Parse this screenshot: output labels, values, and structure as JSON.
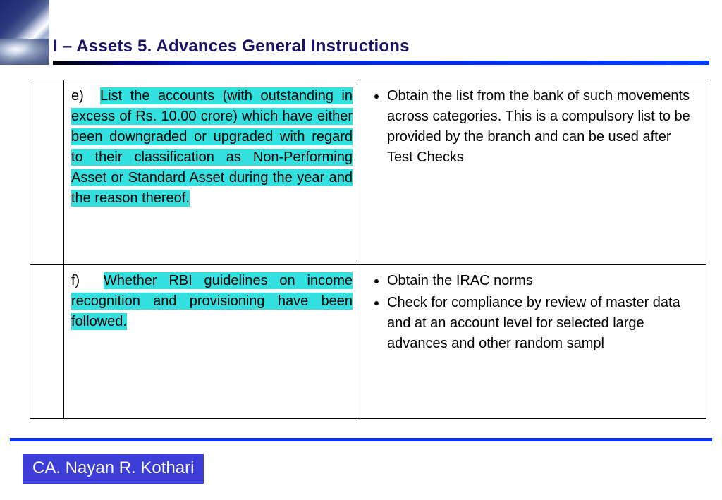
{
  "title": "I – Assets  5. Advances General Instructions",
  "rows": [
    {
      "label": "e)",
      "highlight": "List the accounts (with outstanding in excess of Rs. 10.00 crore) which have either been downgraded or upgraded with regard to their classification   as Non-Performing Asset or Standard Asset during the year and the reason thereof.",
      "bullets": [
        "Obtain the list from the bank of such movements across categories.  This is a compulsory list to be provided by the branch and can be used after Test Checks"
      ]
    },
    {
      "label": "f)",
      "highlight": "Whether RBI guidelines on income recognition and provisioning have been followed.",
      "bullets": [
        "Obtain the IRAC norms",
        "Check for compliance by review of master data and at an account level for selected large advances and other random sampl"
      ]
    }
  ],
  "author": "CA. Nayan R. Kothari",
  "colors": {
    "title_color": "#1b1464",
    "highlight_bg": "#33e0e0",
    "author_bg": "#3d3dd8",
    "footer_rule": "#1030ff"
  }
}
